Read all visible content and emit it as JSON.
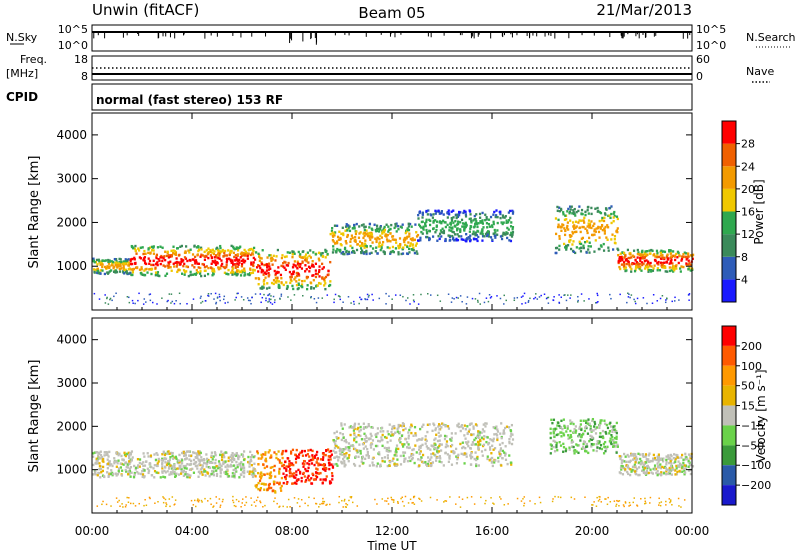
{
  "header": {
    "station": "Unwin (fitACF)",
    "beam": "Beam 05",
    "date": "21/Mar/2013"
  },
  "strip_labels": {
    "nsky": "N.Sky",
    "nsearch": "N.Search",
    "freq_line1": "Freq.",
    "freq_line2": "[MHz]",
    "nave": "Nave",
    "cpid": "CPID",
    "cpid_text": "normal (fast stereo) 153 RF"
  },
  "noise_ticks": [
    "10^5",
    "10^0"
  ],
  "freq_ticks": {
    "left": [
      "18",
      "8"
    ],
    "right": [
      "60",
      "0"
    ]
  },
  "colors": {
    "power": [
      "#1a1aff",
      "#2e5cb8",
      "#3a8a5a",
      "#2fa84f",
      "#f0c800",
      "#f39a00",
      "#f06000",
      "#ff0000"
    ],
    "velocity": [
      "#ff0000",
      "#ff5a00",
      "#ff9900",
      "#e8b400",
      "#c0c0b8",
      "#6ad24a",
      "#3a9a3a",
      "#2a5aa8",
      "#1a1acc"
    ]
  },
  "chart_data": [
    {
      "type": "heatmap",
      "ylabel": "Slant Range [km]",
      "y_ticks": [
        "1000",
        "2000",
        "3000",
        "4000"
      ],
      "ylim": [
        0,
        4500
      ],
      "colorbar": {
        "label": "Power [dB]",
        "ticks": [
          "4",
          "8",
          "12",
          "16",
          "20",
          "24",
          "28"
        ],
        "range": [
          0,
          32
        ]
      },
      "bands": [
        {
          "t0": 0.0,
          "t1": 1.5,
          "r0": 850,
          "r1": 1200,
          "level": "mid"
        },
        {
          "t0": 1.5,
          "t1": 6.5,
          "r0": 800,
          "r1": 1500,
          "level": "high"
        },
        {
          "t0": 6.5,
          "t1": 9.5,
          "r0": 500,
          "r1": 1400,
          "level": "high"
        },
        {
          "t0": 9.5,
          "t1": 13.0,
          "r0": 1300,
          "r1": 2000,
          "level": "mid"
        },
        {
          "t0": 13.0,
          "t1": 16.8,
          "r0": 1600,
          "r1": 2300,
          "level": "low"
        },
        {
          "t0": 18.5,
          "t1": 21.0,
          "r0": 1300,
          "r1": 2400,
          "level": "mid"
        },
        {
          "t0": 21.0,
          "t1": 24.0,
          "r0": 900,
          "r1": 1400,
          "level": "high"
        }
      ]
    },
    {
      "type": "heatmap",
      "ylabel": "Slant Range [km]",
      "y_ticks": [
        "1000",
        "2000",
        "3000",
        "4000"
      ],
      "ylim": [
        0,
        4500
      ],
      "colorbar": {
        "label": "Velocity [m s⁻¹]",
        "ticks": [
          "200",
          "100",
          "50",
          "15",
          "−15",
          "−50",
          "−100",
          "−200"
        ],
        "range": [
          -250,
          250
        ]
      },
      "regions": [
        {
          "t0": 0.0,
          "t1": 6.5,
          "r0": 850,
          "r1": 1450,
          "color": "gray"
        },
        {
          "t0": 6.5,
          "t1": 7.6,
          "r0": 500,
          "r1": 1500,
          "color": "orange"
        },
        {
          "t0": 7.6,
          "t1": 9.6,
          "r0": 700,
          "r1": 1500,
          "color": "red"
        },
        {
          "t0": 9.6,
          "t1": 16.8,
          "r0": 1100,
          "r1": 2100,
          "color": "gray"
        },
        {
          "t0": 18.3,
          "t1": 21.0,
          "r0": 1400,
          "r1": 2200,
          "color": "green"
        },
        {
          "t0": 21.0,
          "t1": 24.0,
          "r0": 900,
          "r1": 1400,
          "color": "gray"
        }
      ]
    }
  ],
  "x_axis": {
    "ticks": [
      "00:00",
      "04:00",
      "08:00",
      "12:00",
      "16:00",
      "20:00",
      "00:00"
    ],
    "label": "Time UT",
    "range_hours": [
      0,
      24
    ]
  }
}
